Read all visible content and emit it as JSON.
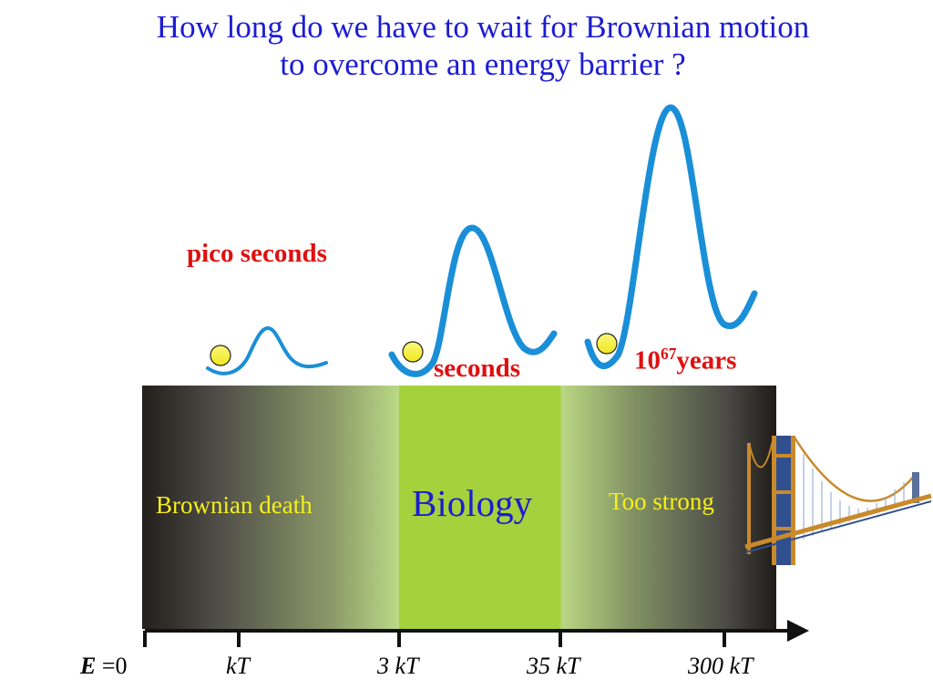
{
  "title": {
    "line1": "How long do we have to wait for Brownian motion",
    "line2": "to overcome an energy barrier ?"
  },
  "wait_times": {
    "low": "pico seconds",
    "mid": "seconds",
    "high_base": "10",
    "high_exp": "67",
    "high_unit": "years"
  },
  "regions": {
    "left": "Brownian death",
    "center": "Biology",
    "right": "Too strong"
  },
  "axis": {
    "energy_symbol": "E",
    "equals": "=",
    "zero": "0",
    "ticks": [
      "kT",
      "3 kT",
      "35 kT",
      "300 kT"
    ]
  },
  "colors": {
    "title": "#1c1cd4",
    "wave": "#1a8fd8",
    "ball": "#f3ee20",
    "biology_band": "#a4d13c",
    "highlight_text": "#e01010",
    "region_text": "#f5f01a"
  },
  "icons": [
    "energy-well-curve",
    "particle-ball",
    "suspension-bridge-icon"
  ]
}
